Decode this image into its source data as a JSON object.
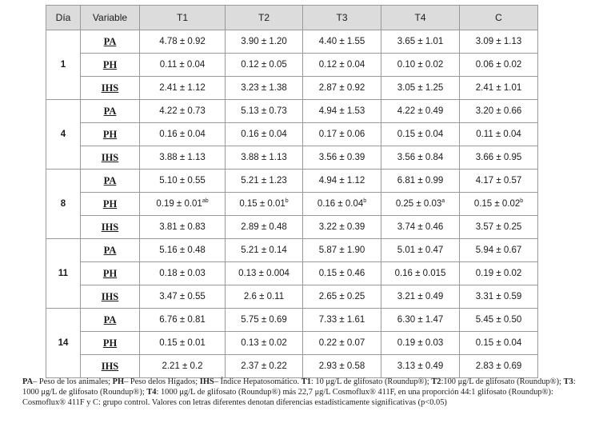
{
  "table": {
    "headers": [
      "Día",
      "Variable",
      "T1",
      "T2",
      "T3",
      "T4",
      "C"
    ],
    "groups": [
      {
        "day": "1",
        "rows": [
          {
            "variable": "PA",
            "values": [
              "4.78 ± 0.92",
              "3.90 ± 1.20",
              "4.40 ± 1.55",
              "3.65 ± 1.01",
              "3.09 ± 1.13"
            ],
            "sups": [
              "",
              "",
              "",
              "",
              ""
            ]
          },
          {
            "variable": "PH",
            "values": [
              "0.11 ± 0.04",
              "0.12 ± 0.05",
              "0.12 ± 0.04",
              "0.10 ± 0.02",
              "0.06 ± 0.02"
            ],
            "sups": [
              "",
              "",
              "",
              "",
              ""
            ]
          },
          {
            "variable": "IHS",
            "values": [
              "2.41 ± 1.12",
              "3.23 ± 1.38",
              "2.87 ± 0.92",
              "3.05 ± 1.25",
              "2.41 ± 1.01"
            ],
            "sups": [
              "",
              "",
              "",
              "",
              ""
            ]
          }
        ]
      },
      {
        "day": "4",
        "rows": [
          {
            "variable": "PA",
            "values": [
              "4.22 ± 0.73",
              "5.13 ± 0.73",
              "4.94 ± 1.53",
              "4.22 ± 0.49",
              "3.20 ± 0.66"
            ],
            "sups": [
              "",
              "",
              "",
              "",
              ""
            ]
          },
          {
            "variable": "PH",
            "values": [
              "0.16 ± 0.04",
              "0.16 ± 0.04",
              "0.17 ± 0.06",
              "0.15 ± 0.04",
              "0.11 ± 0.04"
            ],
            "sups": [
              "",
              "",
              "",
              "",
              ""
            ]
          },
          {
            "variable": "IHS",
            "values": [
              "3.88 ± 1.13",
              "3.88 ± 1.13",
              "3.56 ± 0.39",
              "3.56 ± 0.84",
              "3.66 ± 0.95"
            ],
            "sups": [
              "",
              "",
              "",
              "",
              ""
            ]
          }
        ]
      },
      {
        "day": "8",
        "rows": [
          {
            "variable": "PA",
            "values": [
              "5.10 ± 0.55",
              "5.21 ± 1.23",
              "4.94 ± 1.12",
              "6.81 ± 0.99",
              "4.17 ± 0.57"
            ],
            "sups": [
              "",
              "",
              "",
              "",
              ""
            ]
          },
          {
            "variable": "PH",
            "values": [
              "0.19 ± 0.01",
              "0.15 ± 0.01",
              "0.16 ± 0.04",
              "0.25 ± 0.03",
              "0.15 ± 0.02"
            ],
            "sups": [
              "ab",
              "b",
              "b",
              "a",
              "b"
            ]
          },
          {
            "variable": "IHS",
            "values": [
              "3.81 ± 0.83",
              "2.89 ± 0.48",
              "3.22 ± 0.39",
              "3.74 ± 0.46",
              "3.57 ± 0.25"
            ],
            "sups": [
              "",
              "",
              "",
              "",
              ""
            ]
          }
        ]
      },
      {
        "day": "11",
        "rows": [
          {
            "variable": "PA",
            "values": [
              "5.16 ± 0.48",
              "5.21 ± 0.14",
              "5.87 ± 1.90",
              "5.01 ± 0.47",
              "5.94 ± 0.67"
            ],
            "sups": [
              "",
              "",
              "",
              "",
              ""
            ]
          },
          {
            "variable": "PH",
            "values": [
              "0.18 ± 0.03",
              "0.13 ± 0.004",
              "0.15 ± 0.46",
              "0.16 ± 0.015",
              "0.19 ± 0.02"
            ],
            "sups": [
              "",
              "",
              "",
              "",
              ""
            ]
          },
          {
            "variable": "IHS",
            "values": [
              "3.47 ± 0.55",
              "2.6 ± 0.11",
              "2.65 ± 0.25",
              "3.21 ± 0.49",
              "3.31 ± 0.59"
            ],
            "sups": [
              "",
              "",
              "",
              "",
              ""
            ]
          }
        ]
      },
      {
        "day": "14",
        "rows": [
          {
            "variable": "PA",
            "values": [
              "6.76 ± 0.81",
              "5.75 ± 0.69",
              "7.33 ± 1.61",
              "6.30 ± 1.47",
              "5.45 ± 0.50"
            ],
            "sups": [
              "",
              "",
              "",
              "",
              ""
            ]
          },
          {
            "variable": "PH",
            "values": [
              "0.15 ± 0.01",
              "0.13 ± 0.02",
              "0.22 ± 0.07",
              "0.19 ± 0.03",
              "0.15 ± 0.04"
            ],
            "sups": [
              "",
              "",
              "",
              "",
              ""
            ]
          },
          {
            "variable": "IHS",
            "values": [
              "2.21 ± 0.2",
              "2.37 ± 0.22",
              "2.93 ± 0.58",
              "3.13 ± 0.49",
              "2.83 ± 0.69"
            ],
            "sups": [
              "",
              "",
              "",
              "",
              ""
            ]
          }
        ]
      }
    ]
  },
  "footnote": {
    "segments": [
      {
        "text": "PA",
        "bold": true
      },
      {
        "text": "– Peso de los animales; ",
        "bold": false
      },
      {
        "text": "PH",
        "bold": true
      },
      {
        "text": "– Peso delos Hígados; ",
        "bold": false
      },
      {
        "text": "IHS",
        "bold": true
      },
      {
        "text": "– Índice Hepatosomático. ",
        "bold": false
      },
      {
        "text": "T1",
        "bold": true
      },
      {
        "text": ": 10 μg/L de glifosato (Roundup®); ",
        "bold": false
      },
      {
        "text": "T2",
        "bold": true
      },
      {
        "text": ":100 μg/L de glifosato (Roundup®); ",
        "bold": false
      },
      {
        "text": "T3",
        "bold": true
      },
      {
        "text": ": 1000 μg/L de glifosato (Roundup®); ",
        "bold": false
      },
      {
        "text": "T4",
        "bold": true
      },
      {
        "text": ": 1000 μg/L de glifosato (Roundup®) más 22,7 μg/L Cosmoflux® 411F, en una proporción 44:1 glifosato (Roundup®): Cosmoflux® 411F y C: grupo control. Valores con letras diferentes denotan diferencias estadísticamente significativas (p<0.05)",
        "bold": false
      }
    ]
  }
}
